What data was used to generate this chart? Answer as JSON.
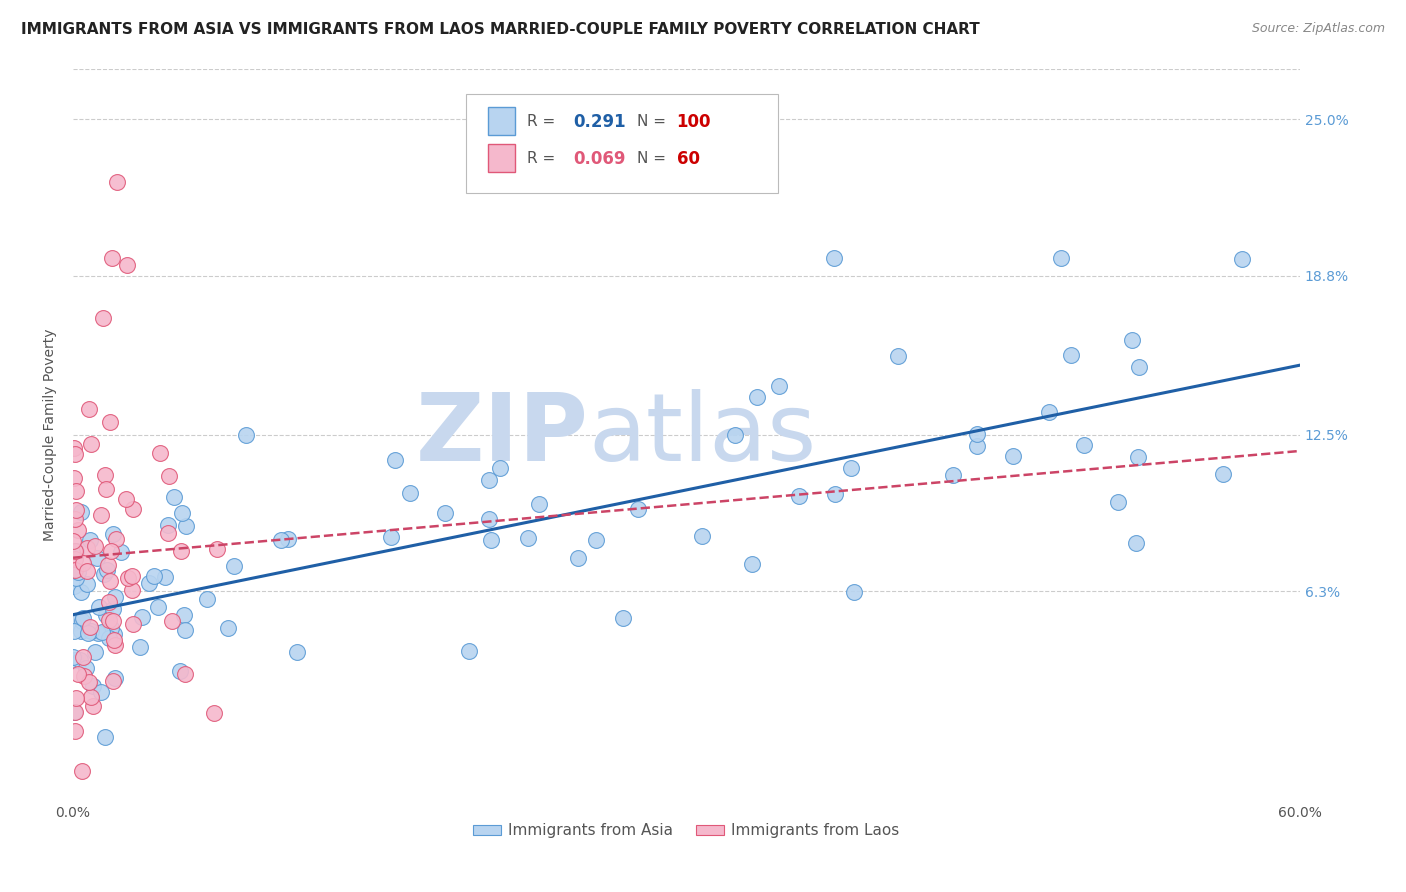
{
  "title": "IMMIGRANTS FROM ASIA VS IMMIGRANTS FROM LAOS MARRIED-COUPLE FAMILY POVERTY CORRELATION CHART",
  "source": "Source: ZipAtlas.com",
  "ylabel": "Married-Couple Family Poverty",
  "xlabel": "",
  "xlim": [
    0.0,
    0.6
  ],
  "ylim": [
    -0.02,
    0.27
  ],
  "yticks": [
    0.063,
    0.125,
    0.188,
    0.25
  ],
  "ytick_labels": [
    "6.3%",
    "12.5%",
    "18.8%",
    "25.0%"
  ],
  "xticks": [
    0.0,
    0.1,
    0.2,
    0.3,
    0.4,
    0.5,
    0.6
  ],
  "xtick_labels": [
    "0.0%",
    "",
    "",
    "",
    "",
    "",
    "60.0%"
  ],
  "series_asia": {
    "label": "Immigrants from Asia",
    "color": "#b8d4f0",
    "edge_color": "#5b9bd5",
    "R": 0.291,
    "N": 100,
    "line_color": "#1f5fa6",
    "line_style": "solid"
  },
  "series_laos": {
    "label": "Immigrants from Laos",
    "color": "#f5b8cc",
    "edge_color": "#e05878",
    "R": 0.069,
    "N": 60,
    "line_color": "#cc4466",
    "line_style": "dashed"
  },
  "watermark_zip": "ZIP",
  "watermark_atlas": "atlas",
  "watermark_color_zip": "#c8d8ee",
  "watermark_color_atlas": "#c8d8ee",
  "background_color": "#ffffff",
  "grid_color": "#cccccc",
  "title_fontsize": 11,
  "axis_label_fontsize": 10,
  "tick_fontsize": 10,
  "right_tick_color": "#5b9bd5"
}
